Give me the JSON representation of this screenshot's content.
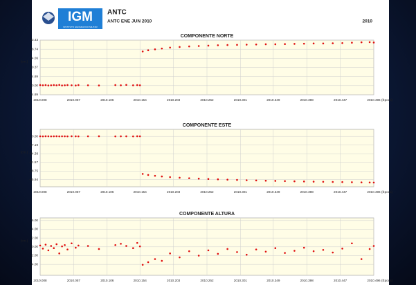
{
  "header": {
    "title": "ANTC",
    "subtitle": "ANTC ENE JUN 2010",
    "year": "2010",
    "logo": "IGM",
    "logo_caption": "INSTITUTO GEOGRAFICO MILITAR"
  },
  "chart_data": [
    {
      "type": "scatter",
      "title": "COMPONENTE NORTE",
      "ylabel": "(cm.)",
      "xlabel": "(Época)",
      "color": "#e01010",
      "grid": true,
      "xlim": [
        2010.008,
        2010.496
      ],
      "xticks": [
        2010.008,
        2010.057,
        2010.106,
        2010.154,
        2010.203,
        2010.252,
        2010.301,
        2010.349,
        2010.398,
        2010.447,
        2010.496
      ],
      "ylim": [
        -4.69,
        23.43
      ],
      "yticks": [
        23.43,
        18.74,
        14.06,
        9.37,
        4.69,
        {
          "value": 0,
          "label": "0.00"
        },
        -4.69
      ],
      "x": [
        2010.008,
        2010.012,
        2010.016,
        2010.02,
        2010.024,
        2010.028,
        2010.032,
        2010.036,
        2010.04,
        2010.044,
        2010.048,
        2010.054,
        2010.06,
        2010.064,
        2010.078,
        2010.094,
        2010.118,
        2010.126,
        2010.134,
        2010.144,
        2010.15,
        2010.154,
        2010.158,
        2010.166,
        2010.176,
        2010.186,
        2010.198,
        2010.212,
        2010.226,
        2010.24,
        2010.254,
        2010.268,
        2010.282,
        2010.296,
        2010.31,
        2010.324,
        2010.338,
        2010.352,
        2010.366,
        2010.38,
        2010.394,
        2010.408,
        2010.422,
        2010.436,
        2010.45,
        2010.464,
        2010.478,
        2010.49,
        2010.496
      ],
      "values": [
        0.3,
        0.2,
        0.3,
        0.1,
        0.2,
        0.3,
        0.2,
        0.4,
        0.1,
        0.2,
        0.3,
        0.2,
        0.1,
        0.3,
        0.2,
        0.1,
        0.3,
        0.2,
        0.4,
        0.2,
        0.3,
        0.2,
        17.6,
        18.2,
        18.7,
        19.1,
        19.6,
        19.9,
        20.2,
        20.4,
        20.6,
        20.8,
        20.9,
        21.0,
        21.1,
        21.2,
        21.3,
        21.3,
        21.4,
        21.5,
        21.6,
        21.7,
        21.7,
        21.8,
        21.9,
        22.1,
        22.3,
        22.4,
        22.2
      ]
    },
    {
      "type": "scatter",
      "title": "COMPONENTE ESTE",
      "ylabel": "(cm.)",
      "xlabel": "(Época)",
      "color": "#e01010",
      "grid": true,
      "xlim": [
        2010.008,
        2010.496
      ],
      "xticks": [
        2010.008,
        2010.057,
        2010.106,
        2010.154,
        2010.203,
        2010.252,
        2010.301,
        2010.349,
        2010.398,
        2010.447,
        2010.496
      ],
      "ylim": [
        -100,
        14
      ],
      "yticks": [
        {
          "value": 0,
          "label": "0.00"
        },
        -17.19,
        -34.38,
        -51.57,
        -68.75,
        -85.94
      ],
      "x": [
        2010.008,
        2010.012,
        2010.016,
        2010.02,
        2010.024,
        2010.028,
        2010.032,
        2010.036,
        2010.04,
        2010.044,
        2010.048,
        2010.054,
        2010.06,
        2010.064,
        2010.078,
        2010.094,
        2010.118,
        2010.126,
        2010.134,
        2010.144,
        2010.15,
        2010.154,
        2010.158,
        2010.166,
        2010.176,
        2010.186,
        2010.198,
        2010.212,
        2010.226,
        2010.24,
        2010.254,
        2010.268,
        2010.282,
        2010.296,
        2010.31,
        2010.324,
        2010.338,
        2010.352,
        2010.366,
        2010.38,
        2010.394,
        2010.408,
        2010.422,
        2010.436,
        2010.45,
        2010.464,
        2010.478,
        2010.49,
        2010.496
      ],
      "values": [
        0.2,
        0.1,
        0.3,
        0.2,
        0.1,
        0.2,
        0.3,
        0.1,
        0.2,
        0.2,
        0.1,
        0.3,
        0.2,
        0.1,
        0.2,
        0.3,
        0.1,
        0.2,
        0.2,
        0.1,
        0.3,
        0.2,
        -74.5,
        -76.5,
        -78.2,
        -79.5,
        -80.8,
        -82.0,
        -83.0,
        -83.8,
        -84.5,
        -85.2,
        -85.9,
        -86.4,
        -87.0,
        -87.4,
        -87.9,
        -88.3,
        -88.7,
        -89.1,
        -89.5,
        -89.8,
        -90.1,
        -90.4,
        -90.7,
        -91.0,
        -91.3,
        -91.5,
        -91.6
      ]
    },
    {
      "type": "scatter",
      "title": "COMPONENTE ALTURA",
      "ylabel": "(cm.)",
      "xlabel": "(Época)",
      "color": "#e01010",
      "grid": true,
      "xlim": [
        2010.008,
        2010.496
      ],
      "xticks": [
        2010.008,
        2010.057,
        2010.106,
        2010.154,
        2010.203,
        2010.252,
        2010.301,
        2010.349,
        2010.398,
        2010.447,
        2010.496
      ],
      "ylim": [
        -6.5,
        6.6
      ],
      "yticks": [
        {
          "value": 6,
          "label": "6.00"
        },
        {
          "value": 4,
          "label": "4.00"
        },
        {
          "value": 2,
          "label": "2.00"
        },
        {
          "value": 0,
          "label": "0.00"
        },
        {
          "value": -2,
          "label": "-2.00"
        },
        {
          "value": -4,
          "label": "-4.00"
        }
      ],
      "x": [
        2010.008,
        2010.012,
        2010.016,
        2010.02,
        2010.024,
        2010.028,
        2010.032,
        2010.036,
        2010.04,
        2010.044,
        2010.048,
        2010.054,
        2010.06,
        2010.064,
        2010.078,
        2010.094,
        2010.118,
        2010.126,
        2010.134,
        2010.144,
        2010.15,
        2010.154,
        2010.158,
        2010.166,
        2010.176,
        2010.186,
        2010.198,
        2010.212,
        2010.226,
        2010.24,
        2010.254,
        2010.268,
        2010.282,
        2010.296,
        2010.31,
        2010.324,
        2010.338,
        2010.352,
        2010.366,
        2010.38,
        2010.394,
        2010.408,
        2010.422,
        2010.436,
        2010.45,
        2010.464,
        2010.478,
        2010.49,
        2010.496
      ],
      "values": [
        0.3,
        -0.4,
        0.5,
        -0.8,
        0.2,
        -0.3,
        0.6,
        -1.5,
        0.1,
        0.4,
        -0.6,
        0.8,
        -0.2,
        0.3,
        0.2,
        -0.5,
        0.4,
        0.7,
        0.2,
        -0.3,
        0.9,
        0.1,
        -4.1,
        -3.5,
        -2.8,
        -3.2,
        -1.5,
        -2.4,
        -1.0,
        -2.0,
        -0.8,
        -1.6,
        -0.5,
        -1.2,
        -1.8,
        -0.6,
        -1.1,
        -0.3,
        -1.4,
        -0.9,
        -0.2,
        -1.0,
        -0.7,
        -1.3,
        -0.4,
        0.8,
        -2.8,
        -0.5,
        0.2
      ]
    }
  ]
}
